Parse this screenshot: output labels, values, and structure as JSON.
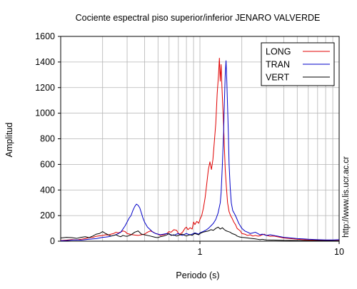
{
  "chart_data": {
    "type": "line",
    "title": "Cociente espectral piso superior/inferior  JENARO VALVERDE",
    "xlabel": "Periodo (s)",
    "ylabel": "Amplitud",
    "xscale": "log",
    "xlim": [
      0.1,
      10
    ],
    "ylim": [
      0,
      1600
    ],
    "grid": true,
    "legend_position": "top-right",
    "x_ticks": [
      {
        "value": 1,
        "label": "1"
      },
      {
        "value": 10,
        "label": "10"
      }
    ],
    "y_ticks": [
      0,
      200,
      400,
      600,
      800,
      1000,
      1200,
      1400,
      1600
    ],
    "series": [
      {
        "name": "LONG",
        "color": "#e00000",
        "points": [
          [
            0.1,
            5
          ],
          [
            0.11,
            8
          ],
          [
            0.12,
            12
          ],
          [
            0.13,
            10
          ],
          [
            0.14,
            15
          ],
          [
            0.15,
            20
          ],
          [
            0.16,
            28
          ],
          [
            0.17,
            30
          ],
          [
            0.18,
            38
          ],
          [
            0.19,
            42
          ],
          [
            0.2,
            45
          ],
          [
            0.21,
            50
          ],
          [
            0.22,
            48
          ],
          [
            0.23,
            55
          ],
          [
            0.24,
            60
          ],
          [
            0.25,
            70
          ],
          [
            0.26,
            65
          ],
          [
            0.27,
            72
          ],
          [
            0.28,
            80
          ],
          [
            0.29,
            75
          ],
          [
            0.3,
            60
          ],
          [
            0.32,
            52
          ],
          [
            0.34,
            48
          ],
          [
            0.36,
            45
          ],
          [
            0.38,
            50
          ],
          [
            0.4,
            55
          ],
          [
            0.42,
            70
          ],
          [
            0.44,
            80
          ],
          [
            0.46,
            72
          ],
          [
            0.48,
            60
          ],
          [
            0.5,
            55
          ],
          [
            0.52,
            45
          ],
          [
            0.55,
            50
          ],
          [
            0.58,
            60
          ],
          [
            0.6,
            75
          ],
          [
            0.62,
            70
          ],
          [
            0.65,
            90
          ],
          [
            0.68,
            85
          ],
          [
            0.7,
            60
          ],
          [
            0.72,
            55
          ],
          [
            0.75,
            70
          ],
          [
            0.78,
            100
          ],
          [
            0.8,
            110
          ],
          [
            0.82,
            90
          ],
          [
            0.85,
            105
          ],
          [
            0.88,
            95
          ],
          [
            0.9,
            150
          ],
          [
            0.92,
            130
          ],
          [
            0.95,
            155
          ],
          [
            0.98,
            140
          ],
          [
            1.0,
            170
          ],
          [
            1.03,
            200
          ],
          [
            1.06,
            260
          ],
          [
            1.09,
            340
          ],
          [
            1.12,
            450
          ],
          [
            1.15,
            560
          ],
          [
            1.18,
            620
          ],
          [
            1.21,
            560
          ],
          [
            1.24,
            640
          ],
          [
            1.27,
            780
          ],
          [
            1.3,
            920
          ],
          [
            1.33,
            1150
          ],
          [
            1.36,
            1300
          ],
          [
            1.38,
            1430
          ],
          [
            1.4,
            1250
          ],
          [
            1.42,
            1380
          ],
          [
            1.44,
            1200
          ],
          [
            1.46,
            1050
          ],
          [
            1.48,
            900
          ],
          [
            1.5,
            720
          ],
          [
            1.52,
            560
          ],
          [
            1.55,
            420
          ],
          [
            1.58,
            300
          ],
          [
            1.62,
            230
          ],
          [
            1.66,
            200
          ],
          [
            1.7,
            180
          ],
          [
            1.75,
            150
          ],
          [
            1.8,
            130
          ],
          [
            1.85,
            100
          ],
          [
            1.9,
            90
          ],
          [
            1.95,
            80
          ],
          [
            2.0,
            60
          ],
          [
            2.1,
            55
          ],
          [
            2.2,
            45
          ],
          [
            2.3,
            50
          ],
          [
            2.4,
            40
          ],
          [
            2.5,
            45
          ],
          [
            2.6,
            40
          ],
          [
            2.7,
            42
          ],
          [
            2.8,
            50
          ],
          [
            2.9,
            55
          ],
          [
            3.0,
            45
          ],
          [
            3.2,
            38
          ],
          [
            3.4,
            40
          ],
          [
            3.6,
            35
          ],
          [
            3.8,
            30
          ],
          [
            4.0,
            25
          ],
          [
            4.5,
            20
          ],
          [
            5.0,
            15
          ],
          [
            5.5,
            12
          ],
          [
            6.0,
            10
          ],
          [
            7.0,
            8
          ],
          [
            8.0,
            6
          ],
          [
            9.0,
            5
          ],
          [
            10.0,
            5
          ]
        ]
      },
      {
        "name": "TRAN",
        "color": "#0000c8",
        "points": [
          [
            0.1,
            3
          ],
          [
            0.11,
            5
          ],
          [
            0.12,
            8
          ],
          [
            0.13,
            10
          ],
          [
            0.14,
            8
          ],
          [
            0.15,
            12
          ],
          [
            0.16,
            15
          ],
          [
            0.17,
            18
          ],
          [
            0.18,
            20
          ],
          [
            0.19,
            25
          ],
          [
            0.2,
            30
          ],
          [
            0.21,
            32
          ],
          [
            0.22,
            35
          ],
          [
            0.23,
            40
          ],
          [
            0.24,
            45
          ],
          [
            0.25,
            52
          ],
          [
            0.26,
            60
          ],
          [
            0.27,
            70
          ],
          [
            0.28,
            95
          ],
          [
            0.29,
            120
          ],
          [
            0.3,
            150
          ],
          [
            0.31,
            180
          ],
          [
            0.32,
            200
          ],
          [
            0.33,
            240
          ],
          [
            0.34,
            270
          ],
          [
            0.35,
            290
          ],
          [
            0.36,
            280
          ],
          [
            0.37,
            260
          ],
          [
            0.38,
            220
          ],
          [
            0.39,
            180
          ],
          [
            0.4,
            150
          ],
          [
            0.42,
            110
          ],
          [
            0.44,
            90
          ],
          [
            0.46,
            70
          ],
          [
            0.48,
            60
          ],
          [
            0.5,
            55
          ],
          [
            0.52,
            50
          ],
          [
            0.55,
            55
          ],
          [
            0.58,
            60
          ],
          [
            0.6,
            55
          ],
          [
            0.62,
            50
          ],
          [
            0.65,
            45
          ],
          [
            0.68,
            55
          ],
          [
            0.7,
            60
          ],
          [
            0.72,
            50
          ],
          [
            0.75,
            45
          ],
          [
            0.78,
            55
          ],
          [
            0.8,
            60
          ],
          [
            0.82,
            55
          ],
          [
            0.85,
            50
          ],
          [
            0.88,
            55
          ],
          [
            0.9,
            60
          ],
          [
            0.92,
            65
          ],
          [
            0.95,
            60
          ],
          [
            0.98,
            55
          ],
          [
            1.0,
            65
          ],
          [
            1.05,
            75
          ],
          [
            1.1,
            85
          ],
          [
            1.15,
            100
          ],
          [
            1.2,
            120
          ],
          [
            1.25,
            140
          ],
          [
            1.3,
            170
          ],
          [
            1.35,
            220
          ],
          [
            1.4,
            300
          ],
          [
            1.42,
            380
          ],
          [
            1.45,
            600
          ],
          [
            1.48,
            850
          ],
          [
            1.5,
            1100
          ],
          [
            1.52,
            1300
          ],
          [
            1.54,
            1410
          ],
          [
            1.56,
            1250
          ],
          [
            1.58,
            1050
          ],
          [
            1.6,
            850
          ],
          [
            1.62,
            600
          ],
          [
            1.65,
            420
          ],
          [
            1.68,
            300
          ],
          [
            1.72,
            240
          ],
          [
            1.76,
            220
          ],
          [
            1.8,
            200
          ],
          [
            1.85,
            170
          ],
          [
            1.9,
            140
          ],
          [
            1.95,
            120
          ],
          [
            2.0,
            100
          ],
          [
            2.1,
            80
          ],
          [
            2.2,
            70
          ],
          [
            2.3,
            60
          ],
          [
            2.4,
            65
          ],
          [
            2.5,
            70
          ],
          [
            2.6,
            60
          ],
          [
            2.7,
            50
          ],
          [
            2.8,
            55
          ],
          [
            2.9,
            50
          ],
          [
            3.0,
            45
          ],
          [
            3.2,
            50
          ],
          [
            3.4,
            45
          ],
          [
            3.6,
            40
          ],
          [
            3.8,
            35
          ],
          [
            4.0,
            30
          ],
          [
            4.5,
            25
          ],
          [
            5.0,
            20
          ],
          [
            5.5,
            18
          ],
          [
            6.0,
            15
          ],
          [
            7.0,
            12
          ],
          [
            8.0,
            10
          ],
          [
            9.0,
            10
          ],
          [
            10.0,
            12
          ]
        ]
      },
      {
        "name": "VERT",
        "color": "#000000",
        "points": [
          [
            0.1,
            25
          ],
          [
            0.11,
            30
          ],
          [
            0.12,
            28
          ],
          [
            0.13,
            22
          ],
          [
            0.14,
            30
          ],
          [
            0.15,
            35
          ],
          [
            0.16,
            28
          ],
          [
            0.17,
            40
          ],
          [
            0.18,
            55
          ],
          [
            0.19,
            60
          ],
          [
            0.2,
            75
          ],
          [
            0.21,
            60
          ],
          [
            0.22,
            50
          ],
          [
            0.23,
            40
          ],
          [
            0.24,
            45
          ],
          [
            0.25,
            50
          ],
          [
            0.26,
            40
          ],
          [
            0.27,
            35
          ],
          [
            0.28,
            45
          ],
          [
            0.29,
            40
          ],
          [
            0.3,
            38
          ],
          [
            0.32,
            50
          ],
          [
            0.34,
            70
          ],
          [
            0.36,
            80
          ],
          [
            0.38,
            55
          ],
          [
            0.4,
            50
          ],
          [
            0.42,
            45
          ],
          [
            0.44,
            40
          ],
          [
            0.46,
            35
          ],
          [
            0.48,
            30
          ],
          [
            0.5,
            28
          ],
          [
            0.52,
            35
          ],
          [
            0.55,
            40
          ],
          [
            0.58,
            50
          ],
          [
            0.6,
            60
          ],
          [
            0.62,
            45
          ],
          [
            0.65,
            50
          ],
          [
            0.68,
            40
          ],
          [
            0.7,
            45
          ],
          [
            0.72,
            50
          ],
          [
            0.75,
            55
          ],
          [
            0.78,
            45
          ],
          [
            0.8,
            40
          ],
          [
            0.82,
            45
          ],
          [
            0.85,
            50
          ],
          [
            0.88,
            45
          ],
          [
            0.9,
            55
          ],
          [
            0.92,
            60
          ],
          [
            0.95,
            55
          ],
          [
            0.98,
            50
          ],
          [
            1.0,
            60
          ],
          [
            1.05,
            70
          ],
          [
            1.1,
            75
          ],
          [
            1.15,
            80
          ],
          [
            1.2,
            90
          ],
          [
            1.25,
            85
          ],
          [
            1.3,
            100
          ],
          [
            1.35,
            110
          ],
          [
            1.4,
            95
          ],
          [
            1.45,
            105
          ],
          [
            1.5,
            90
          ],
          [
            1.55,
            80
          ],
          [
            1.6,
            75
          ],
          [
            1.65,
            70
          ],
          [
            1.7,
            60
          ],
          [
            1.75,
            55
          ],
          [
            1.8,
            50
          ],
          [
            1.85,
            40
          ],
          [
            1.9,
            35
          ],
          [
            1.95,
            32
          ],
          [
            2.0,
            30
          ],
          [
            2.1,
            28
          ],
          [
            2.2,
            25
          ],
          [
            2.3,
            22
          ],
          [
            2.4,
            20
          ],
          [
            2.5,
            18
          ],
          [
            2.6,
            15
          ],
          [
            2.7,
            12
          ],
          [
            2.8,
            15
          ],
          [
            2.9,
            12
          ],
          [
            3.0,
            10
          ],
          [
            3.5,
            8
          ],
          [
            4.0,
            6
          ],
          [
            5.0,
            5
          ],
          [
            6.0,
            4
          ],
          [
            7.0,
            4
          ],
          [
            8.0,
            3
          ],
          [
            10.0,
            3
          ]
        ]
      }
    ]
  },
  "watermark": "http://www.lis.ucr.ac.cr"
}
